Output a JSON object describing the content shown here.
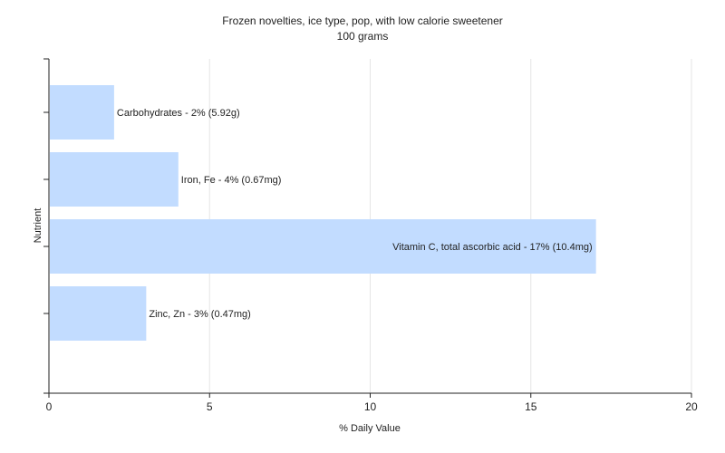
{
  "chart_data": {
    "type": "bar",
    "orientation": "horizontal",
    "title": "Frozen novelties, ice type, pop, with low calorie sweetener",
    "subtitle": "100 grams",
    "xlabel": "% Daily Value",
    "ylabel": "Nutrient",
    "xlim": [
      0,
      20
    ],
    "xticks": [
      0,
      5,
      10,
      15,
      20
    ],
    "grid": true,
    "bar_color": "#c2dcff",
    "categories": [
      "Carbohydrates",
      "Iron, Fe",
      "Vitamin C, total ascorbic acid",
      "Zinc, Zn"
    ],
    "values": [
      2,
      4,
      17,
      3
    ],
    "labels": [
      "Carbohydrates - 2% (5.92g)",
      "Iron, Fe - 4% (0.67mg)",
      "Vitamin C, total ascorbic acid - 17% (10.4mg)",
      "Zinc, Zn - 3% (0.47mg)"
    ]
  }
}
